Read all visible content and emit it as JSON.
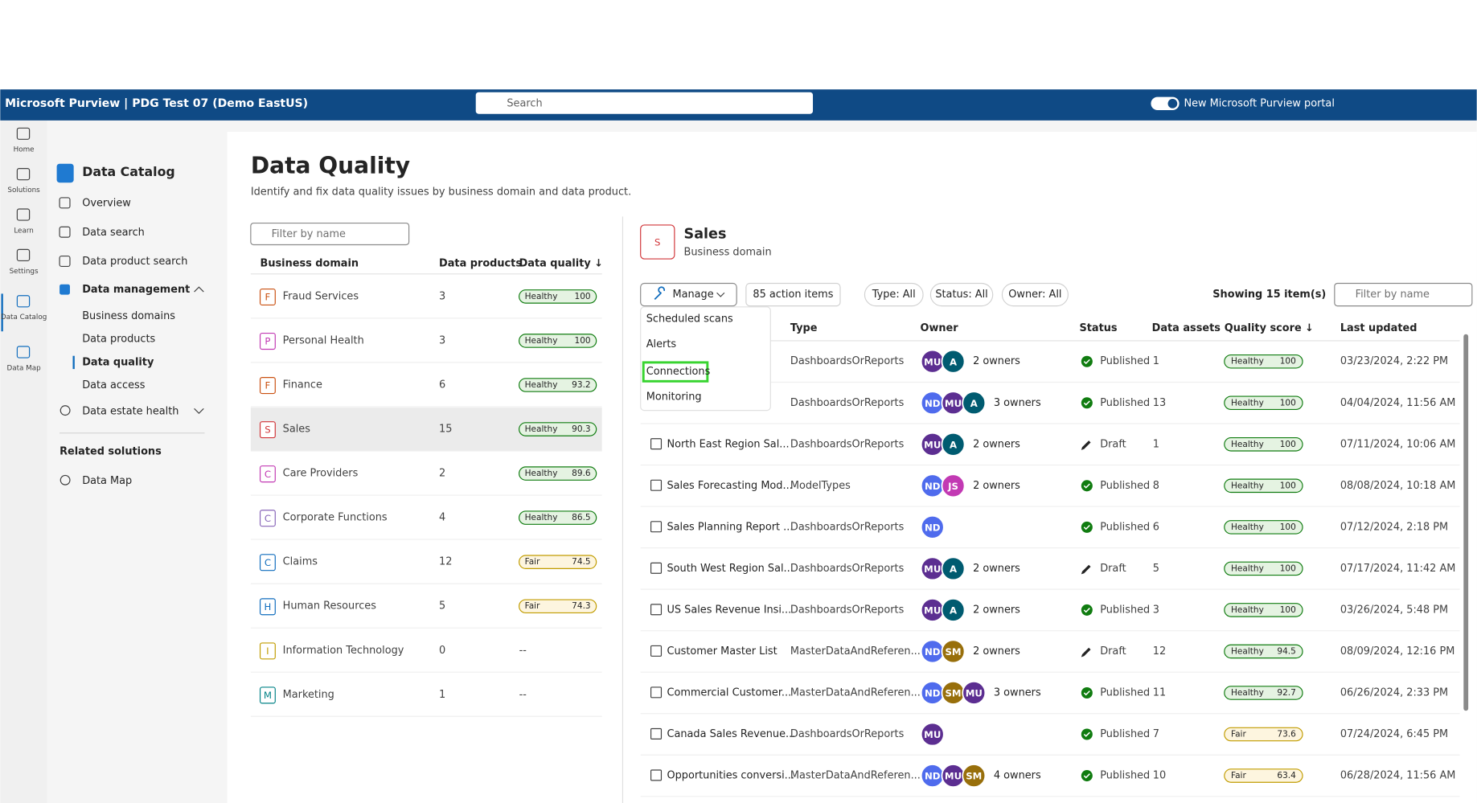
{
  "header": {
    "brand": "Microsoft Purview | PDG Test 07 (Demo EastUS)",
    "search": "Search",
    "toggle_label": "New Microsoft Purview portal"
  },
  "rail": [
    "Home",
    "Solutions",
    "Learn",
    "Settings",
    "Data Catalog",
    "Data Map"
  ],
  "sidebar": {
    "title": "Data Catalog",
    "items": [
      "Overview",
      "Data search",
      "Data product search"
    ],
    "group": "Data management",
    "children": [
      "Business domains",
      "Data products",
      "Data quality",
      "Data access"
    ],
    "health": "Data estate health",
    "related": "Related solutions",
    "related_items": [
      "Data Map"
    ]
  },
  "main": {
    "title": "Data Quality",
    "subtitle": "Identify and fix data quality issues by business domain and data product.",
    "filter": "Filter by name",
    "columns": [
      "Business domain",
      "Data products",
      "Data quality ↓"
    ],
    "domains": [
      {
        "letter": "F",
        "name": "Fraud Services",
        "products": 3,
        "status": "Healthy",
        "score": 100
      },
      {
        "letter": "P",
        "name": "Personal Health",
        "products": 3,
        "status": "Healthy",
        "score": 100
      },
      {
        "letter": "F",
        "name": "Finance",
        "products": 6,
        "status": "Healthy",
        "score": 93.2
      },
      {
        "letter": "S",
        "name": "Sales",
        "products": 15,
        "status": "Healthy",
        "score": 90.3
      },
      {
        "letter": "C",
        "name": "Care Providers",
        "products": 2,
        "status": "Healthy",
        "score": 89.6
      },
      {
        "letter": "C",
        "name": "Corporate Functions",
        "products": 4,
        "status": "Healthy",
        "score": 86.5
      },
      {
        "letter": "C",
        "name": "Claims",
        "products": 12,
        "status": "Fair",
        "score": 74.5
      },
      {
        "letter": "H",
        "name": "Human Resources",
        "products": 5,
        "status": "Fair",
        "score": 74.3
      },
      {
        "letter": "I",
        "name": "Information Technology",
        "products": 0,
        "status": null,
        "score": "--"
      },
      {
        "letter": "M",
        "name": "Marketing",
        "products": 1,
        "status": null,
        "score": "--"
      }
    ]
  },
  "detail": {
    "letter": "S",
    "title": "Sales",
    "subtitle": "Business domain",
    "manage": "Manage",
    "actions": "85 action items",
    "filters": [
      "Type: All",
      "Status: All",
      "Owner: All"
    ],
    "showing": "Showing 15 item(s)",
    "filter": "Filter by name",
    "menu": [
      "Scheduled scans",
      "Alerts",
      "Connections",
      "Monitoring"
    ],
    "columns": [
      "Type",
      "Owner",
      "Status",
      "Data assets",
      "Quality score ↓",
      "Last updated"
    ],
    "rows": [
      {
        "name": null,
        "type": "DashboardsOrReports",
        "avatars": [
          "MU",
          "A"
        ],
        "owners": "2 owners",
        "status": "Published",
        "assets": 1,
        "quality": "Healthy",
        "score": 100,
        "updated": "03/23/2024, 2:22 PM"
      },
      {
        "name": null,
        "type": "DashboardsOrReports",
        "avatars": [
          "ND",
          "MU",
          "A"
        ],
        "owners": "3 owners",
        "status": "Published",
        "assets": 13,
        "quality": "Healthy",
        "score": 100,
        "updated": "04/04/2024, 11:56 AM"
      },
      {
        "name": "North East Region Sal...",
        "type": "DashboardsOrReports",
        "avatars": [
          "MU",
          "A"
        ],
        "owners": "2 owners",
        "status": "Draft",
        "assets": 1,
        "quality": "Healthy",
        "score": 100,
        "updated": "07/11/2024, 10:06 AM"
      },
      {
        "name": "Sales Forecasting Mod...",
        "type": "ModelTypes",
        "avatars": [
          "ND",
          "JS"
        ],
        "owners": "2 owners",
        "status": "Published",
        "assets": 8,
        "quality": "Healthy",
        "score": 100,
        "updated": "08/08/2024, 10:18 AM"
      },
      {
        "name": "Sales Planning Report ...",
        "type": "DashboardsOrReports",
        "avatars": [
          "ND"
        ],
        "owners": null,
        "status": "Published",
        "assets": 6,
        "quality": "Healthy",
        "score": 100,
        "updated": "07/12/2024, 2:18 PM"
      },
      {
        "name": "South West Region Sal...",
        "type": "DashboardsOrReports",
        "avatars": [
          "MU",
          "A"
        ],
        "owners": "2 owners",
        "status": "Draft",
        "assets": 5,
        "quality": "Healthy",
        "score": 100,
        "updated": "07/17/2024, 11:42 AM"
      },
      {
        "name": "US Sales Revenue Insi...",
        "type": "DashboardsOrReports",
        "avatars": [
          "MU",
          "A"
        ],
        "owners": "2 owners",
        "status": "Published",
        "assets": 3,
        "quality": "Healthy",
        "score": 100,
        "updated": "03/26/2024, 5:48 PM"
      },
      {
        "name": "Customer Master List",
        "type": "MasterDataAndReferen...",
        "avatars": [
          "ND",
          "SM"
        ],
        "owners": "2 owners",
        "status": "Draft",
        "assets": 12,
        "quality": "Healthy",
        "score": 94.5,
        "updated": "08/09/2024, 12:16 PM"
      },
      {
        "name": "Commercial Customer...",
        "type": "MasterDataAndReferen...",
        "avatars": [
          "ND",
          "SM",
          "MU"
        ],
        "owners": "3 owners",
        "status": "Published",
        "assets": 11,
        "quality": "Healthy",
        "score": 92.7,
        "updated": "06/26/2024, 2:33 PM"
      },
      {
        "name": "Canada Sales Revenue...",
        "type": "DashboardsOrReports",
        "avatars": [
          "MU"
        ],
        "owners": null,
        "status": "Published",
        "assets": 7,
        "quality": "Fair",
        "score": 73.6,
        "updated": "07/24/2024, 6:45 PM"
      },
      {
        "name": "Opportunities conversi...",
        "type": "MasterDataAndReferen...",
        "avatars": [
          "ND",
          "MU",
          "SM"
        ],
        "owners": "4 owners",
        "status": "Published",
        "assets": 10,
        "quality": "Fair",
        "score": 63.4,
        "updated": "06/28/2024, 11:56 AM"
      }
    ]
  }
}
